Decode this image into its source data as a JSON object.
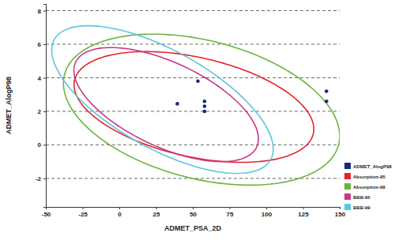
{
  "chart_data": {
    "type": "scatter",
    "x_label": "ADMET_PSA_2D",
    "y_label": "ADMET_AlogP98",
    "xlim": [
      -50,
      150
    ],
    "ylim": [
      -3.7,
      8.4
    ],
    "xticks": [
      -50,
      -25,
      0,
      25,
      50,
      75,
      100,
      125,
      150
    ],
    "yticks": [
      -2,
      0,
      2,
      4,
      6,
      8
    ],
    "grid": "y",
    "legend": "right",
    "series": [
      {
        "name": "ADMET_AlogP98",
        "color": "#1b2a7b",
        "marker": "circle",
        "x": [
          39.5,
          53.5,
          58,
          58,
          58,
          141,
          141
        ],
        "values": [
          2.45,
          3.8,
          2.6,
          2.3,
          2.0,
          3.2,
          2.6
        ]
      }
    ],
    "ellipses": [
      {
        "name": "Absorption-95",
        "color": "#e3242b",
        "cx": 50.8,
        "cy": 2.26,
        "rx": 81.6,
        "ry": 3.3,
        "correlation": -0.4
      },
      {
        "name": "Absorption-99",
        "color": "#6cb33f",
        "cx": 56,
        "cy": 2.1,
        "rx": 94,
        "ry": 4.5,
        "correlation": -0.35
      },
      {
        "name": "BBB-95",
        "color": "#c8388a",
        "cx": 31.9,
        "cy": 2.4,
        "rx": 62.8,
        "ry": 3.4,
        "correlation": -0.6
      },
      {
        "name": "BBB-99",
        "color": "#5cc6de",
        "cx": 29.4,
        "cy": 2.7,
        "rx": 75.4,
        "ry": 4.4,
        "correlation": -0.67
      }
    ]
  }
}
